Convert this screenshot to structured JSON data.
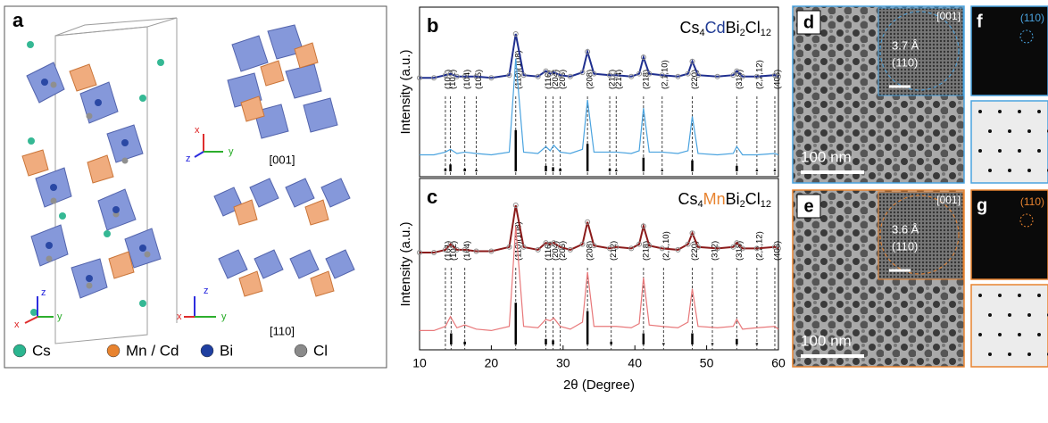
{
  "structure": {
    "label": "a",
    "view1": "[001]",
    "view2": "[110]",
    "axes": {
      "x": "x",
      "y": "y",
      "z": "z"
    },
    "legend": [
      {
        "name": "Cs",
        "color": "#2bb58f"
      },
      {
        "name": "Mn / Cd",
        "color": "#e8832f"
      },
      {
        "name": "Bi",
        "color": "#1f3fa0"
      },
      {
        "name": "Cl",
        "color": "#8a8a8a"
      }
    ]
  },
  "chart_data": [
    {
      "type": "line",
      "label": "b",
      "formula": [
        {
          "text": "Cs"
        },
        {
          "text": "4",
          "sub": true
        },
        {
          "text": "Cd",
          "color": "#1f3a93"
        },
        {
          "text": "Bi"
        },
        {
          "text": "2",
          "sub": true
        },
        {
          "text": "Cl"
        },
        {
          "text": "12",
          "sub": true
        }
      ],
      "ylabel": "Intensity (a.u.)",
      "xlim": [
        10,
        60
      ],
      "ylim": [
        0,
        100
      ],
      "x": [
        10,
        12,
        13.6,
        14.3,
        15.2,
        16.3,
        17.9,
        20,
        22.5,
        23.4,
        24.5,
        26.5,
        27.6,
        28.2,
        28.7,
        29.6,
        31,
        32.7,
        33.4,
        34.3,
        36.5,
        37.4,
        39.5,
        40.6,
        41.2,
        42,
        43.8,
        46,
        47.4,
        48,
        48.8,
        51.5,
        53.7,
        54.2,
        55,
        57,
        59.5,
        60
      ],
      "series": [
        {
          "color": "#1f2f8f",
          "marker_color": "#8c8c8c",
          "values": [
            68,
            68,
            70,
            71,
            69,
            69,
            69,
            68,
            70,
            100,
            70,
            69,
            73,
            71,
            72,
            70,
            69,
            72,
            87,
            71,
            70,
            70,
            69,
            71,
            83,
            71,
            70,
            69,
            71,
            80,
            70,
            69,
            70,
            73,
            69,
            69,
            70,
            69
          ]
        },
        {
          "color": "#4aa3df",
          "values": [
            12,
            12,
            14,
            16,
            13,
            14,
            13,
            12,
            14,
            82,
            14,
            13,
            18,
            15,
            19,
            14,
            13,
            16,
            52,
            14,
            14,
            14,
            13,
            15,
            46,
            14,
            14,
            13,
            15,
            40,
            13,
            12,
            13,
            18,
            12,
            12,
            13,
            12
          ]
        }
      ],
      "sticks": {
        "color": "#000000",
        "x": [
          13.6,
          14.3,
          16.3,
          17.9,
          23.4,
          27.6,
          28.6,
          29.6,
          33.4,
          36.5,
          37.4,
          41.2,
          43.8,
          48,
          54.2,
          57,
          59.5
        ],
        "values": [
          2,
          5,
          2,
          1,
          30,
          4,
          3,
          2,
          20,
          2,
          1,
          10,
          1,
          8,
          4,
          1,
          1
        ]
      },
      "annotations": [
        {
          "text": "(101)",
          "x": 13.6
        },
        {
          "text": "(102)",
          "x": 14.3
        },
        {
          "text": "(104)",
          "x": 16.3
        },
        {
          "text": "(105)",
          "x": 17.9
        },
        {
          "text": "(110)(108)",
          "x": 23.4
        },
        {
          "text": "(116)",
          "x": 27.6
        },
        {
          "text": "(204)",
          "x": 28.6
        },
        {
          "text": "(205)",
          "x": 29.6
        },
        {
          "text": "(208)",
          "x": 33.4
        },
        {
          "text": "(212)",
          "x": 36.5
        },
        {
          "text": "(214)",
          "x": 37.4
        },
        {
          "text": "(218)",
          "x": 41.2
        },
        {
          "text": "(2,1,10)",
          "x": 43.8
        },
        {
          "text": "(220)",
          "x": 48
        },
        {
          "text": "(318)",
          "x": 54.2
        },
        {
          "text": "(2,2,12)",
          "x": 57
        },
        {
          "text": "(408)",
          "x": 59.5
        }
      ]
    },
    {
      "type": "line",
      "label": "c",
      "formula": [
        {
          "text": "Cs"
        },
        {
          "text": "4",
          "sub": true
        },
        {
          "text": "Mn",
          "color": "#e8832f"
        },
        {
          "text": "Bi"
        },
        {
          "text": "2",
          "sub": true
        },
        {
          "text": "Cl"
        },
        {
          "text": "12",
          "sub": true
        }
      ],
      "ylabel": "Intensity (a.u.)",
      "xlabel": "2θ (Degree)",
      "xlim": [
        10,
        60
      ],
      "ylim": [
        0,
        100
      ],
      "xticks": [
        10,
        20,
        30,
        40,
        50,
        60
      ],
      "x": [
        10,
        12,
        13.6,
        14.3,
        15.2,
        16.3,
        17.9,
        20,
        22.5,
        23.4,
        24.5,
        26.5,
        27.6,
        28.2,
        28.7,
        29.6,
        31,
        32.7,
        33.4,
        34.3,
        36.5,
        37.4,
        39.5,
        40.6,
        41.2,
        42,
        43.8,
        46,
        47.4,
        48,
        48.8,
        51.5,
        53.7,
        54.2,
        55,
        57,
        59.5,
        60
      ],
      "series": [
        {
          "color": "#8b1a1a",
          "marker_color": "#8c8c8c",
          "values": [
            66,
            66,
            68,
            72,
            68,
            68,
            67,
            67,
            70,
            100,
            70,
            68,
            73,
            72,
            73,
            70,
            68,
            72,
            88,
            71,
            69,
            70,
            69,
            72,
            85,
            71,
            69,
            68,
            72,
            80,
            70,
            69,
            70,
            73,
            69,
            69,
            70,
            69
          ]
        },
        {
          "color": "#e8787a",
          "values": [
            10,
            10,
            13,
            20,
            12,
            14,
            11,
            10,
            13,
            85,
            13,
            12,
            18,
            17,
            19,
            13,
            11,
            16,
            52,
            13,
            13,
            13,
            12,
            15,
            48,
            14,
            13,
            12,
            16,
            40,
            13,
            12,
            13,
            18,
            11,
            12,
            13,
            11
          ]
        }
      ],
      "sticks": {
        "color": "#000000",
        "x": [
          14.4,
          16.3,
          23.4,
          27.6,
          28.6,
          33.4,
          36.7,
          41.2,
          44,
          48,
          50.8,
          54.2,
          57
        ],
        "values": [
          8,
          2,
          30,
          4,
          3,
          24,
          2,
          8,
          1,
          8,
          1,
          4,
          1
        ]
      },
      "annotations": [
        {
          "text": "(101)",
          "x": 13.6
        },
        {
          "text": "(102)",
          "x": 14.4
        },
        {
          "text": "(104)",
          "x": 16.3
        },
        {
          "text": "(110)(108)",
          "x": 23.4
        },
        {
          "text": "(116)",
          "x": 27.6
        },
        {
          "text": "(204)",
          "x": 28.6
        },
        {
          "text": "(205)",
          "x": 29.6
        },
        {
          "text": "(208)",
          "x": 33.4
        },
        {
          "text": "(212)",
          "x": 36.7
        },
        {
          "text": "(218)",
          "x": 41.2
        },
        {
          "text": "(2,1,10)",
          "x": 44
        },
        {
          "text": "(220)",
          "x": 48
        },
        {
          "text": "(312)",
          "x": 50.8
        },
        {
          "text": "(318)",
          "x": 54.2
        },
        {
          "text": "(2,2,12)",
          "x": 57
        },
        {
          "text": "(408)",
          "x": 59.5
        }
      ]
    }
  ],
  "images": [
    {
      "label": "d",
      "zone": "[001]",
      "spacing": "3.7 Å",
      "plane": "(110)",
      "scale": "100 nm",
      "color": "#4aa3df"
    },
    {
      "label": "e",
      "zone": "[001]",
      "spacing": "3.6 Å",
      "plane": "(110)",
      "scale": "100 nm",
      "color": "#e8832f"
    }
  ],
  "fft": [
    {
      "label": "f",
      "plane": "(110)",
      "color": "#4aa3df"
    },
    {
      "label": "g",
      "plane": "(110)",
      "color": "#e8832f"
    }
  ]
}
